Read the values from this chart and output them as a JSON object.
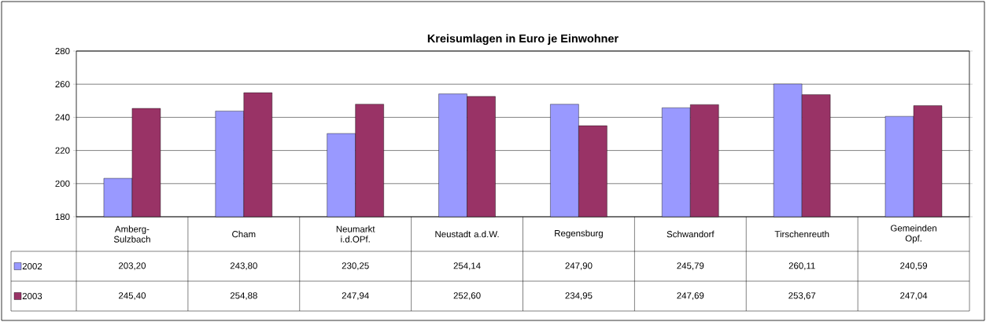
{
  "chart_data": {
    "type": "bar",
    "title": "Kreisumlagen in Euro je Einwohner",
    "categories": [
      "Amberg-Sulzbach",
      "Cham",
      "Neumarkt i.d.OPf.",
      "Neustadt a.d.W.",
      "Regensburg",
      "Schwandorf",
      "Tirschenreuth",
      "Gemeinden Opf."
    ],
    "series": [
      {
        "name": "2002",
        "color": "#9999ff",
        "values": [
          203.2,
          243.8,
          230.25,
          254.14,
          247.9,
          245.79,
          260.11,
          240.59
        ],
        "value_labels": [
          "203,20",
          "243,80",
          "230,25",
          "254,14",
          "247,90",
          "245,79",
          "260,11",
          "240,59"
        ]
      },
      {
        "name": "2003",
        "color": "#993366",
        "values": [
          245.4,
          254.88,
          247.94,
          252.6,
          234.95,
          247.69,
          253.67,
          247.04
        ],
        "value_labels": [
          "245,40",
          "254,88",
          "247,94",
          "252,60",
          "234,95",
          "247,69",
          "253,67",
          "247,04"
        ]
      }
    ],
    "ylim": [
      180,
      280
    ],
    "yticks": [
      180,
      200,
      220,
      240,
      260,
      280
    ],
    "grid": "y",
    "legend": "bottom left"
  }
}
